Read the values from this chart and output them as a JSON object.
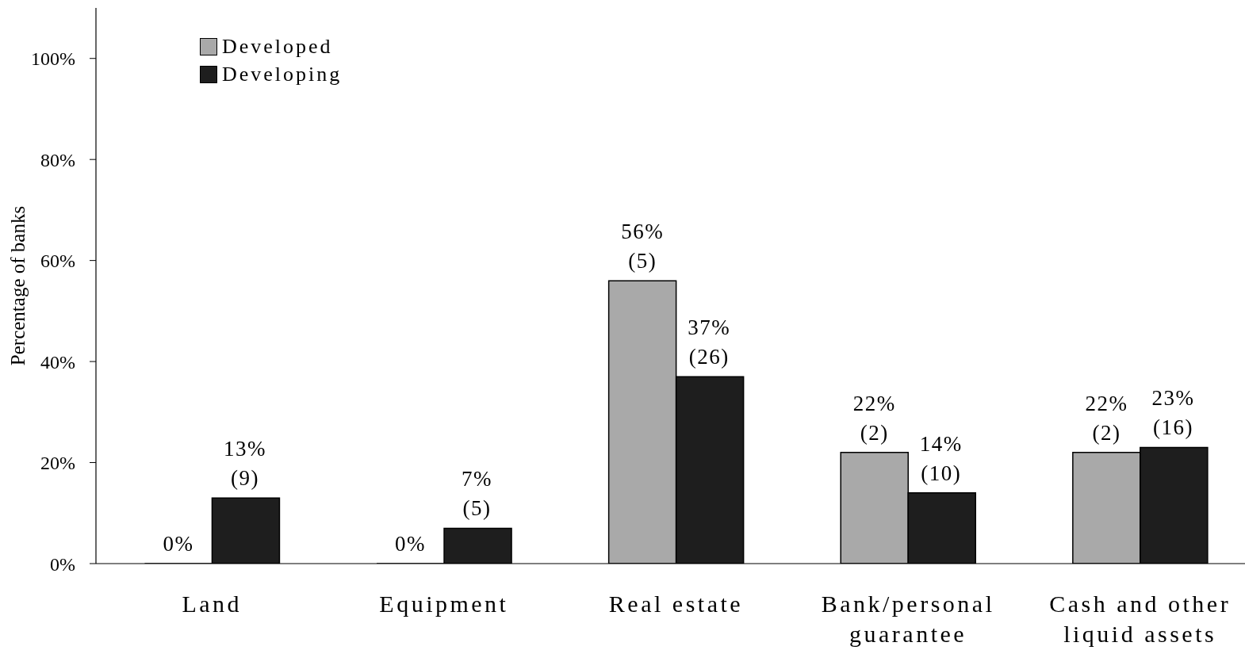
{
  "chart_data": {
    "type": "bar",
    "ylabel": "Percentage of banks",
    "categories": [
      "Land",
      "Equipment",
      "Real estate",
      "Bank/personal guarantee",
      "Cash and other liquid assets"
    ],
    "series": [
      {
        "name": "Developed",
        "color": "#a9a9a9",
        "values": [
          0,
          0,
          56,
          22,
          22
        ],
        "value_labels": [
          "0%",
          "0%",
          "56%\n(5)",
          "22%\n(2)",
          "22%\n(2)"
        ]
      },
      {
        "name": "Developing",
        "color": "#1e1e1e",
        "values": [
          13,
          7,
          37,
          14,
          23
        ],
        "value_labels": [
          "13%\n(9)",
          "7%\n(5)",
          "37%\n(26)",
          "14%\n(10)",
          "23%\n(16)"
        ]
      }
    ],
    "ylim": [
      0,
      110
    ],
    "yticks": [
      {
        "value": 0,
        "label": "0%"
      },
      {
        "value": 20,
        "label": "20%"
      },
      {
        "value": 40,
        "label": "40%"
      },
      {
        "value": 60,
        "label": "60%"
      },
      {
        "value": 80,
        "label": "80%"
      },
      {
        "value": 100,
        "label": "100%"
      }
    ],
    "legend": "top left"
  }
}
